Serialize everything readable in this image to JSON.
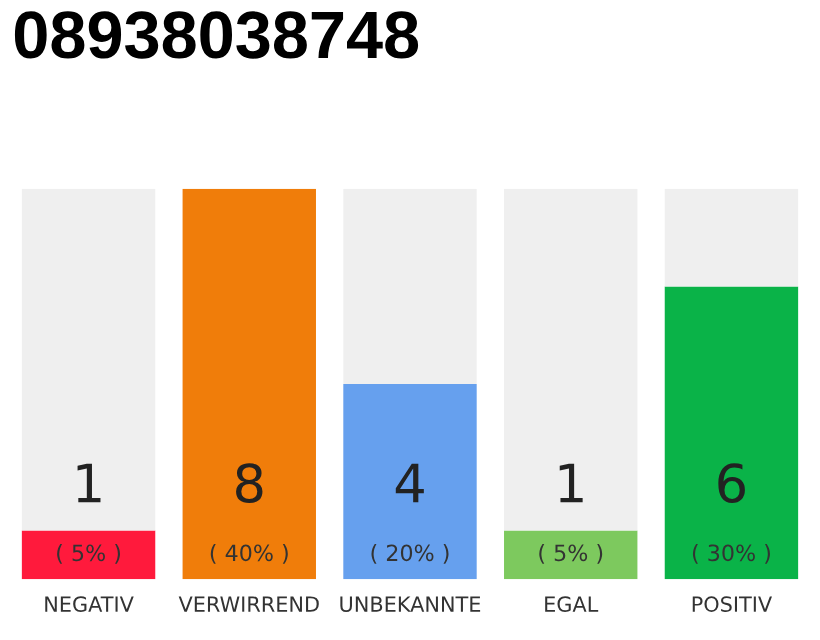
{
  "chart_data": {
    "type": "bar",
    "title": "08938038748",
    "stacked": true,
    "categories": [
      "NEGATIV",
      "VERWIRREND",
      "UNBEKANNTE",
      "EGAL",
      "POSITIV"
    ],
    "series": [
      {
        "colors": [
          "#ff1a3c",
          "#f07d0a",
          "#66a0ee",
          "#7dc95e",
          "#0ab348"
        ],
        "values": [
          1,
          8,
          4,
          1,
          6
        ],
        "value_labels": [
          "1",
          "8",
          "4",
          "1",
          "6"
        ]
      },
      {
        "color": "#efefef",
        "values": [
          7,
          0,
          4,
          7,
          2
        ],
        "value_labels": [
          null,
          null,
          null,
          null,
          null
        ]
      }
    ],
    "annotations": [
      "( 5% )",
      "( 40% )",
      "( 20% )",
      "( 5% )",
      "( 30% )"
    ],
    "grid": false,
    "legend": false
  }
}
